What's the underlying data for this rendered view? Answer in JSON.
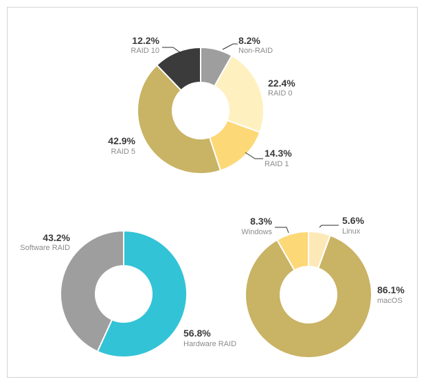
{
  "chart_data": [
    {
      "type": "pie",
      "variant": "donut",
      "slices": [
        {
          "pct_label": "8.2%",
          "label": "Non-RAID",
          "value": 8.2,
          "color": "#9e9e9e"
        },
        {
          "pct_label": "22.4%",
          "label": "RAID 0",
          "value": 22.4,
          "color": "#fff0c0"
        },
        {
          "pct_label": "14.3%",
          "label": "RAID 1",
          "value": 14.3,
          "color": "#fdd877"
        },
        {
          "pct_label": "42.9%",
          "label": "RAID 5",
          "value": 42.9,
          "color": "#c9b364"
        },
        {
          "pct_label": "12.2%",
          "label": "RAID 10",
          "value": 12.2,
          "color": "#3b3b3b"
        }
      ]
    },
    {
      "type": "pie",
      "variant": "donut",
      "slices": [
        {
          "pct_label": "56.8%",
          "label": "Hardware RAID",
          "value": 56.8,
          "color": "#33c3d6"
        },
        {
          "pct_label": "43.2%",
          "label": "Software RAID",
          "value": 43.2,
          "color": "#9e9e9e"
        }
      ]
    },
    {
      "type": "pie",
      "variant": "donut",
      "slices": [
        {
          "pct_label": "5.6%",
          "label": "Linux",
          "value": 5.6,
          "color": "#fde9b8"
        },
        {
          "pct_label": "86.1%",
          "label": "macOS",
          "value": 86.1,
          "color": "#c9b364"
        },
        {
          "pct_label": "8.3%",
          "label": "Windows",
          "value": 8.3,
          "color": "#fdd877"
        }
      ]
    }
  ]
}
